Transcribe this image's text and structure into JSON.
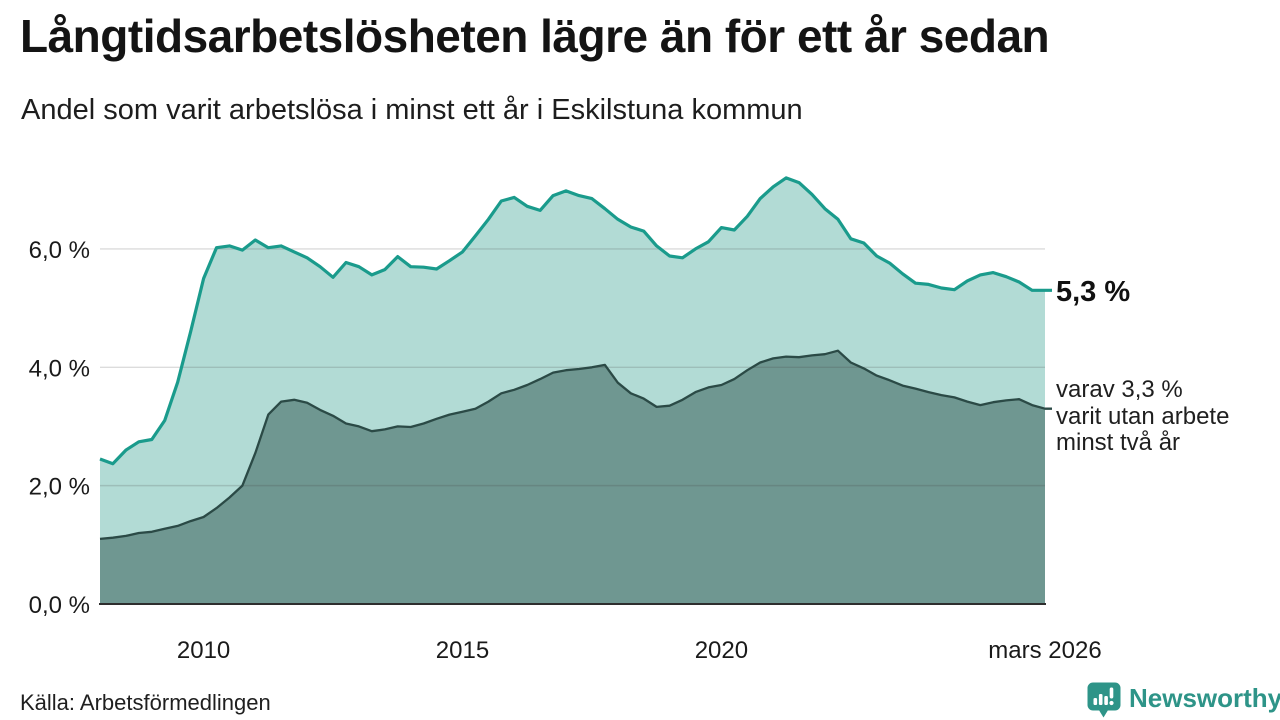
{
  "title": "Långtidsarbetslösheten lägre än för ett år sedan",
  "subtitle": "Andel som varit arbetslösa i minst ett år i Eskilstuna kommun",
  "annotations": {
    "total_label": "5,3 %",
    "detail_line1": "varav 3,3 %",
    "detail_line2": "varit utan arbete",
    "detail_line3": "minst två år"
  },
  "footer": {
    "source": "Källa: Arbetsförmedlingen",
    "brand": "Newsworthy",
    "brand_color": "#2e9488",
    "brand_icon": "newsworthy-pin-bar-chart-icon"
  },
  "chart_data": {
    "type": "area",
    "title": "Andel som varit arbetslösa i minst ett år i Eskilstuna kommun",
    "xlabel": "",
    "ylabel": "",
    "unit": "%",
    "xlim": [
      2008,
      2026.25
    ],
    "ylim": [
      0,
      7.35
    ],
    "grid": "horizontal",
    "legend": "none (direct end labels)",
    "grid_color": "rgba(60,60,60,0.18)",
    "axis_color": "#2e2e2e",
    "background_color": "#ffffff",
    "yticks": [
      {
        "value": 0,
        "label": "0,0 %"
      },
      {
        "value": 2,
        "label": "2,0 %"
      },
      {
        "value": 4,
        "label": "4,0 %"
      },
      {
        "value": 6,
        "label": "6,0 %"
      }
    ],
    "xticks": [
      {
        "value": 2010,
        "label": "2010"
      },
      {
        "value": 2015,
        "label": "2015"
      },
      {
        "value": 2020,
        "label": "2020"
      },
      {
        "value": 2026.25,
        "label": "mars 2026"
      }
    ],
    "x": [
      2008,
      2008.25,
      2008.5,
      2008.75,
      2009,
      2009.25,
      2009.5,
      2009.75,
      2010,
      2010.25,
      2010.5,
      2010.75,
      2011,
      2011.25,
      2011.5,
      2011.75,
      2012,
      2012.25,
      2012.5,
      2012.75,
      2013,
      2013.25,
      2013.5,
      2013.75,
      2014,
      2014.25,
      2014.5,
      2014.75,
      2015,
      2015.25,
      2015.5,
      2015.75,
      2016,
      2016.25,
      2016.5,
      2016.75,
      2017,
      2017.25,
      2017.5,
      2017.75,
      2018,
      2018.25,
      2018.5,
      2018.75,
      2019,
      2019.25,
      2019.5,
      2019.75,
      2020,
      2020.25,
      2020.5,
      2020.75,
      2021,
      2021.25,
      2021.5,
      2021.75,
      2022,
      2022.25,
      2022.5,
      2022.75,
      2023,
      2023.25,
      2023.5,
      2023.75,
      2024,
      2024.25,
      2024.5,
      2024.75,
      2025,
      2025.25,
      2025.5,
      2025.75,
      2026,
      2026.25
    ],
    "series": [
      {
        "name": "Arbetslösa minst ett år",
        "line_color": "#1a9b8c",
        "fill_color": "#b2dbd5",
        "end_value_label": "5,3 %",
        "values": [
          2.45,
          2.37,
          2.6,
          2.74,
          2.78,
          3.1,
          3.75,
          4.6,
          5.5,
          6.02,
          6.05,
          5.98,
          6.15,
          6.02,
          6.05,
          5.95,
          5.85,
          5.7,
          5.52,
          5.77,
          5.7,
          5.56,
          5.65,
          5.87,
          5.7,
          5.69,
          5.66,
          5.8,
          5.95,
          6.22,
          6.5,
          6.81,
          6.87,
          6.72,
          6.65,
          6.9,
          6.98,
          6.9,
          6.85,
          6.68,
          6.5,
          6.37,
          6.3,
          6.05,
          5.88,
          5.85,
          6.0,
          6.12,
          6.36,
          6.32,
          6.55,
          6.85,
          7.05,
          7.2,
          7.12,
          6.92,
          6.68,
          6.5,
          6.17,
          6.1,
          5.88,
          5.76,
          5.58,
          5.42,
          5.4,
          5.34,
          5.31,
          5.46,
          5.56,
          5.6,
          5.53,
          5.44,
          5.3,
          5.3
        ]
      },
      {
        "name": "Varav utan arbete minst två år",
        "line_color": "#2b4a46",
        "fill_color": "#6f9791",
        "end_value_label": "3,3 %",
        "values": [
          1.1,
          1.12,
          1.15,
          1.2,
          1.22,
          1.27,
          1.32,
          1.4,
          1.47,
          1.62,
          1.8,
          2.0,
          2.55,
          3.2,
          3.42,
          3.45,
          3.4,
          3.28,
          3.18,
          3.05,
          3.0,
          2.92,
          2.95,
          3.0,
          2.99,
          3.05,
          3.13,
          3.2,
          3.25,
          3.3,
          3.42,
          3.56,
          3.62,
          3.7,
          3.8,
          3.91,
          3.95,
          3.97,
          4.0,
          4.04,
          3.74,
          3.56,
          3.47,
          3.33,
          3.35,
          3.45,
          3.58,
          3.66,
          3.7,
          3.8,
          3.95,
          4.08,
          4.15,
          4.18,
          4.17,
          4.2,
          4.22,
          4.28,
          4.08,
          3.98,
          3.86,
          3.78,
          3.69,
          3.64,
          3.58,
          3.53,
          3.49,
          3.42,
          3.36,
          3.41,
          3.44,
          3.46,
          3.36,
          3.3
        ]
      }
    ]
  }
}
